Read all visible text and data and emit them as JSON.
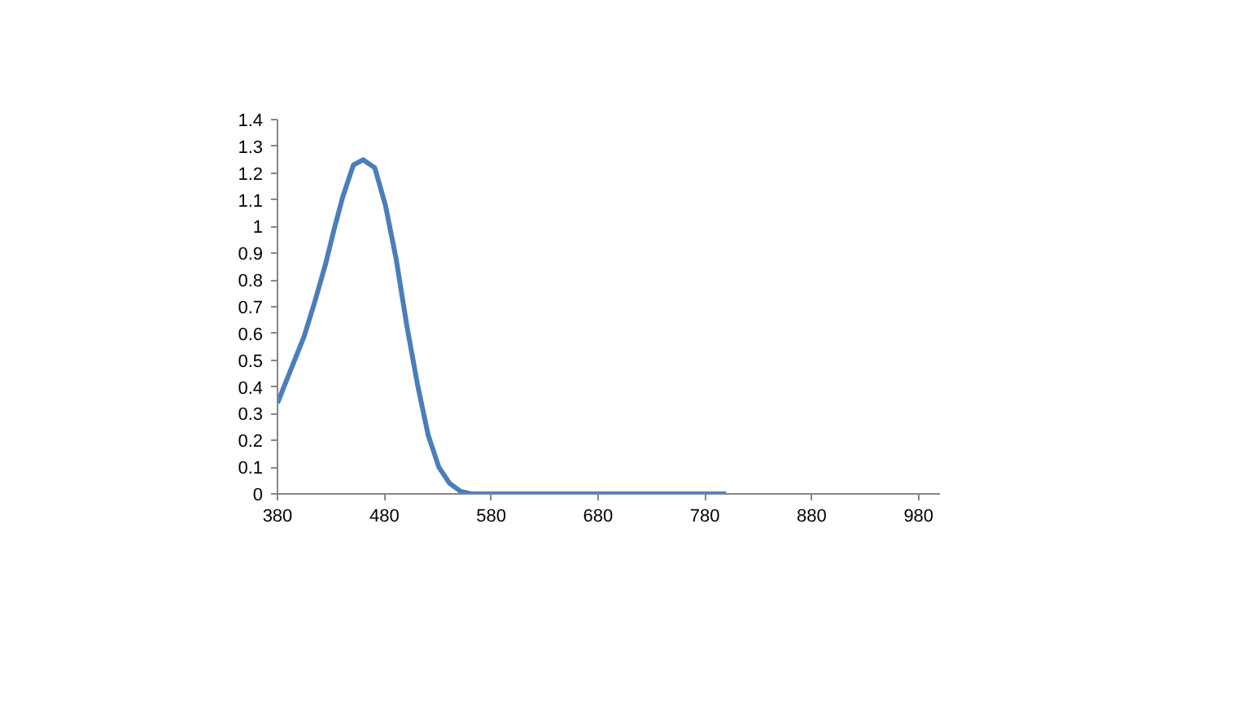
{
  "chart_data": {
    "type": "line",
    "x": [
      380,
      390,
      405,
      415,
      425,
      433,
      441,
      451,
      460,
      471,
      481,
      491,
      501,
      511,
      521,
      531,
      541,
      551,
      561,
      580,
      700,
      800
    ],
    "series": [
      {
        "color": "#4a7ebb",
        "values": [
          0.34,
          0.44,
          0.59,
          0.72,
          0.86,
          0.99,
          1.11,
          1.23,
          1.25,
          1.22,
          1.08,
          0.88,
          0.63,
          0.41,
          0.22,
          0.1,
          0.04,
          0.01,
          0,
          0,
          0,
          0
        ]
      }
    ],
    "xlim": [
      380,
      1000
    ],
    "xticks": [
      380,
      480,
      580,
      680,
      780,
      880,
      980
    ],
    "ylim": [
      0,
      1.4
    ],
    "yticks": [
      0,
      0.1,
      0.2,
      0.3,
      0.4,
      0.5,
      0.6,
      0.7,
      0.8,
      0.9,
      1,
      1.1,
      1.2,
      1.3,
      1.4
    ],
    "marker": "none",
    "line_style": "solid"
  }
}
